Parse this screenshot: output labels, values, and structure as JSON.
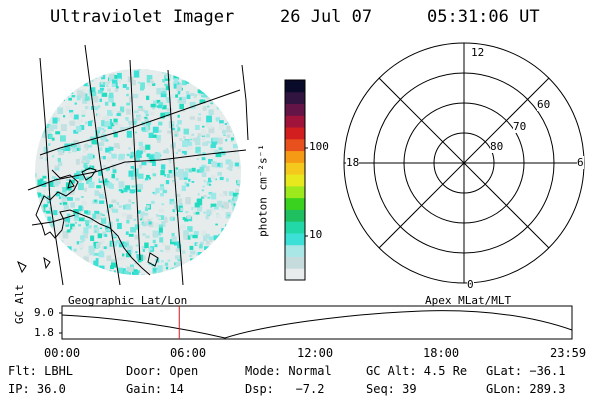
{
  "header": {
    "title": "Ultraviolet Imager",
    "date": "26 Jul 07",
    "time": "05:31:06 UT"
  },
  "colorbar": {
    "unit_label": "photon cm⁻²s⁻¹",
    "tick_100": "100",
    "tick_10": "10",
    "colors": [
      "#e8ecec",
      "#c6dcdc",
      "#a9e6e6",
      "#3ce0d6",
      "#22d8a8",
      "#1ec060",
      "#3ad21e",
      "#9ee81e",
      "#e8e81e",
      "#f5c81e",
      "#f59a14",
      "#e8501e",
      "#d21e1e",
      "#a0143c",
      "#641446",
      "#321440",
      "#0a0a2a"
    ]
  },
  "polar_plot": {
    "mlt_12": "12",
    "mlt_18": "18",
    "mlt_6": "6",
    "mlt_0": "0",
    "lat_60": "60",
    "lat_70": "70",
    "lat_80": "80"
  },
  "panel_labels": {
    "left": "Geographic Lat/Lon",
    "right": "Apex MLat/MLT"
  },
  "altitude_plot": {
    "ylabel": "GC Alt",
    "y_top": "9.0",
    "y_bottom": "1.8",
    "x_ticks": [
      "00:00",
      "06:00",
      "12:00",
      "18:00",
      "23:59"
    ],
    "marker_time_fraction": 0.2299
  },
  "info": {
    "flt": "Flt: LBHL",
    "door": "Door: Open",
    "mode": "Mode: Normal",
    "gc_alt": "GC Alt: 4.5 Re",
    "glat": "GLat: −36.1",
    "ip": "IP: 36.0",
    "gain": "Gain: 14",
    "dsp": "Dsp:   −7.2",
    "seq": "Seq: 39",
    "glon": "GLon: 289.3"
  }
}
